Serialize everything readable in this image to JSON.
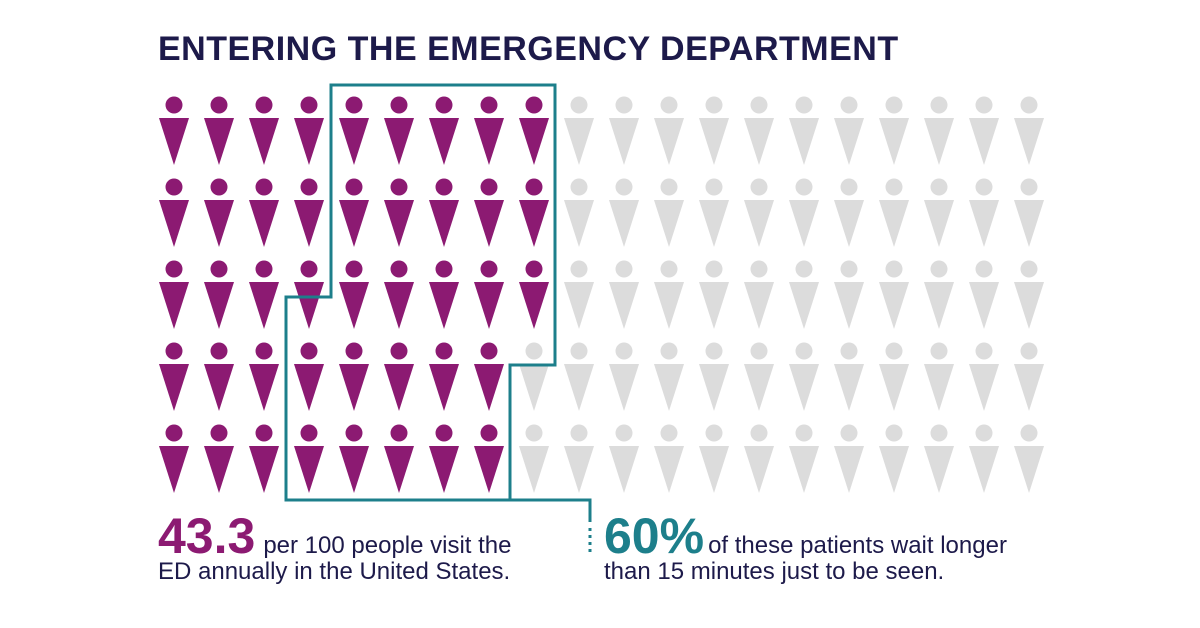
{
  "title": "ENTERING THE EMERGENCY DEPARTMENT",
  "colors": {
    "title": "#1d1a4a",
    "filled": "#8c1a72",
    "empty": "#dcdcdc",
    "highlight_outline": "#1d7f8b",
    "body_text": "#1d1a4a",
    "accent_teal": "#1d7f8b"
  },
  "chart_data": {
    "type": "pictogram",
    "icon": "person-icon",
    "total": 100,
    "rows": 5,
    "columns": 20,
    "filled_value": 43.3,
    "highlighted_share_of_filled": 0.6,
    "filled_per_row": [
      9,
      9,
      9,
      8,
      8
    ],
    "highlighted_count": 26
  },
  "stats": {
    "left": {
      "value": "43.3",
      "line1": "per 100 people visit the",
      "line2": "ED annually in the United States."
    },
    "right": {
      "value": "60%",
      "line1": "of these patients wait longer",
      "line2": "than 15 minutes just to be seen."
    }
  }
}
